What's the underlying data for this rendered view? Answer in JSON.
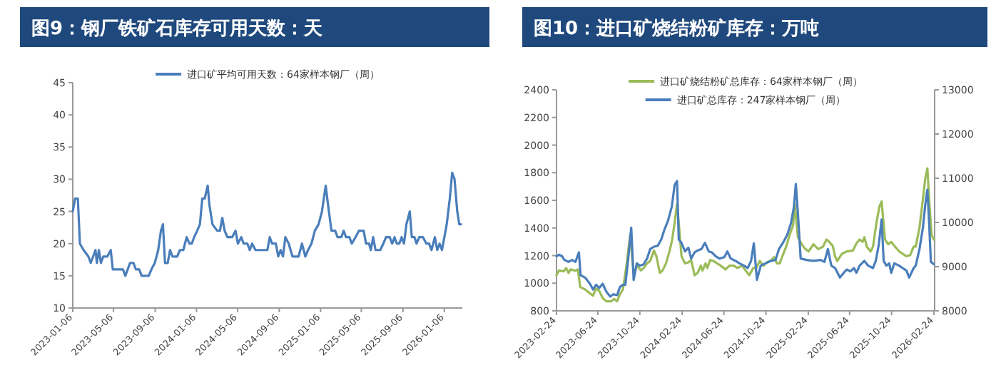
{
  "chart_data": [
    {
      "type": "line",
      "title": "图9：钢厂铁矿石库存可用天数：天",
      "legend": "top",
      "xlim": [
        "2023-01-06",
        "2026-02-28"
      ],
      "xticks": [
        "2023-01-06",
        "2023-05-06",
        "2023-09-06",
        "2024-01-06",
        "2024-05-06",
        "2024-09-06",
        "2025-01-06",
        "2025-05-06",
        "2025-09-06",
        "2026-01-06"
      ],
      "ylim": [
        10,
        45
      ],
      "yticks": [
        10,
        15,
        20,
        25,
        30,
        35,
        40,
        45
      ],
      "x": [
        "2023-01-06",
        "2023-01-13",
        "2023-01-21",
        "2023-01-27",
        "2023-02-07",
        "2023-02-21",
        "2023-02-28",
        "2023-03-14",
        "2023-03-18",
        "2023-03-24",
        "2023-03-30",
        "2023-04-06",
        "2023-04-18",
        "2023-04-28",
        "2023-05-04",
        "2023-06-03",
        "2023-06-10",
        "2023-06-24",
        "2023-07-04",
        "2023-07-11",
        "2023-07-21",
        "2023-07-28",
        "2023-08-18",
        "2023-08-26",
        "2023-09-05",
        "2023-09-15",
        "2023-09-23",
        "2023-09-29",
        "2023-10-05",
        "2023-10-13",
        "2023-10-20",
        "2023-10-27",
        "2023-11-10",
        "2023-11-18",
        "2023-11-28",
        "2023-12-08",
        "2023-12-16",
        "2023-12-23",
        "2023-12-30",
        "2024-01-08",
        "2024-01-16",
        "2024-01-23",
        "2024-01-30",
        "2024-02-08",
        "2024-02-13",
        "2024-02-22",
        "2024-03-07",
        "2024-03-15",
        "2024-03-22",
        "2024-03-29",
        "2024-04-06",
        "2024-04-20",
        "2024-04-30",
        "2024-05-07",
        "2024-05-17",
        "2024-05-24",
        "2024-06-04",
        "2024-06-11",
        "2024-06-18",
        "2024-06-28",
        "2024-08-02",
        "2024-08-09",
        "2024-08-16",
        "2024-08-27",
        "2024-09-03",
        "2024-09-10",
        "2024-09-17",
        "2024-09-24",
        "2024-10-04",
        "2024-10-15",
        "2024-11-02",
        "2024-11-12",
        "2024-11-22",
        "2024-11-30",
        "2024-12-10",
        "2024-12-20",
        "2024-12-31",
        "2025-01-10",
        "2025-01-21",
        "2025-01-28",
        "2025-02-07",
        "2025-02-18",
        "2025-02-25",
        "2025-03-08",
        "2025-03-15",
        "2025-03-22",
        "2025-04-01",
        "2025-04-08",
        "2025-04-19",
        "2025-04-29",
        "2025-05-13",
        "2025-05-20",
        "2025-05-29",
        "2025-06-03",
        "2025-06-10",
        "2025-06-17",
        "2025-07-01",
        "2025-07-10",
        "2025-07-18",
        "2025-07-29",
        "2025-08-05",
        "2025-08-12",
        "2025-08-19",
        "2025-08-26",
        "2025-09-02",
        "2025-09-09",
        "2025-09-16",
        "2025-09-26",
        "2025-10-02",
        "2025-10-10",
        "2025-10-16",
        "2025-10-24",
        "2025-11-04",
        "2025-11-14",
        "2025-11-22",
        "2025-11-29",
        "2025-12-09",
        "2025-12-16",
        "2025-12-23",
        "2025-12-30",
        "2026-01-06",
        "2026-01-13",
        "2026-01-22",
        "2026-01-29",
        "2026-02-05",
        "2026-02-13",
        "2026-02-19",
        "2026-02-24"
      ],
      "series": [
        {
          "name": "进口矿平均可用天数：64家样本钢厂（周）",
          "color": "#4a7ebb",
          "values": [
            25,
            27,
            27,
            20,
            19,
            18,
            17,
            19,
            17,
            19,
            17,
            18,
            18,
            19,
            16,
            16,
            15,
            17,
            17,
            16,
            16,
            15,
            15,
            16,
            17,
            19,
            22,
            23,
            17,
            17,
            19,
            18,
            18,
            19,
            19,
            21,
            20,
            20,
            21,
            22,
            23,
            27,
            27,
            29,
            26,
            23,
            22,
            22,
            24,
            22,
            21,
            21,
            22,
            20,
            21,
            20,
            20,
            19,
            20,
            19,
            19,
            21,
            20,
            20,
            18,
            19,
            18,
            21,
            20,
            18,
            18,
            20,
            18,
            19,
            20,
            22,
            23,
            25,
            29,
            26,
            22,
            22,
            21,
            21,
            22,
            21,
            21,
            20,
            21,
            22,
            22,
            20,
            20,
            19,
            21,
            19,
            19,
            20,
            21,
            21,
            20,
            21,
            20,
            20,
            21,
            20,
            23,
            25,
            21,
            21,
            20,
            21,
            21,
            20,
            20,
            19,
            21,
            19,
            20,
            19,
            21,
            23,
            27,
            31,
            30,
            25,
            23,
            23
          ]
        }
      ]
    },
    {
      "type": "line",
      "title": "图10：进口矿烧结粉矿库存：万吨",
      "legend": "top",
      "xlim": [
        "2023-02-24",
        "2026-02-26"
      ],
      "xticks": [
        "2023-02-24",
        "2023-06-24",
        "2023-10-24",
        "2024-02-24",
        "2024-06-24",
        "2024-10-24",
        "2025-02-24",
        "2025-06-24",
        "2025-10-24",
        "2026-02-24"
      ],
      "ylim": [
        800,
        2400
      ],
      "yticks": [
        800,
        1000,
        1200,
        1400,
        1600,
        1800,
        2000,
        2200,
        2400
      ],
      "y2lim": [
        8000,
        13000
      ],
      "y2ticks": [
        8000,
        9000,
        10000,
        11000,
        12000,
        13000
      ],
      "series": [
        {
          "name": "进口矿烧结粉矿总库存：64家样本钢厂（周）",
          "color": "#9bbb59",
          "x": [
            "2023-02-24",
            "2023-03-03",
            "2023-03-17",
            "2023-03-24",
            "2023-03-31",
            "2023-04-06",
            "2023-04-20",
            "2023-04-27",
            "2023-05-04",
            "2023-05-18",
            "2023-06-01",
            "2023-06-10",
            "2023-06-19",
            "2023-06-28",
            "2023-07-08",
            "2023-07-19",
            "2023-08-02",
            "2023-08-10",
            "2023-08-19",
            "2023-08-27",
            "2023-09-05",
            "2023-09-15",
            "2023-09-26",
            "2023-10-05",
            "2023-10-10",
            "2023-10-17",
            "2023-10-27",
            "2023-11-04",
            "2023-11-14",
            "2023-11-23",
            "2023-12-04",
            "2023-12-11",
            "2023-12-21",
            "2023-12-29",
            "2024-01-08",
            "2024-01-18",
            "2024-01-26",
            "2024-02-02",
            "2024-02-09",
            "2024-02-14",
            "2024-02-22",
            "2024-03-03",
            "2024-03-13",
            "2024-03-21",
            "2024-03-31",
            "2024-04-09",
            "2024-04-18",
            "2024-04-23",
            "2024-05-02",
            "2024-05-07",
            "2024-05-15",
            "2024-05-25",
            "2024-06-04",
            "2024-06-15",
            "2024-06-29",
            "2024-07-10",
            "2024-07-23",
            "2024-08-02",
            "2024-08-16",
            "2024-08-26",
            "2024-09-06",
            "2024-09-17",
            "2024-09-26",
            "2024-10-06",
            "2024-10-17",
            "2024-10-28",
            "2024-11-07",
            "2024-11-17",
            "2024-11-25",
            "2024-12-03",
            "2024-12-11",
            "2024-12-22",
            "2025-01-01",
            "2025-01-11",
            "2025-01-16",
            "2025-01-25",
            "2025-02-05",
            "2025-02-16",
            "2025-02-25",
            "2025-03-11",
            "2025-03-25",
            "2025-04-08",
            "2025-04-18",
            "2025-04-26",
            "2025-05-06",
            "2025-05-13",
            "2025-05-19",
            "2025-06-02",
            "2025-06-16",
            "2025-07-04",
            "2025-07-14",
            "2025-07-23",
            "2025-08-01",
            "2025-08-06",
            "2025-08-13",
            "2025-08-24",
            "2025-08-31",
            "2025-09-10",
            "2025-09-19",
            "2025-09-25",
            "2025-10-05",
            "2025-10-14",
            "2025-10-23",
            "2025-11-01",
            "2025-11-15",
            "2025-11-25",
            "2025-12-06",
            "2025-12-17",
            "2025-12-27",
            "2026-01-02",
            "2026-01-13",
            "2026-01-23",
            "2026-01-30",
            "2026-02-05",
            "2026-02-10",
            "2026-02-17",
            "2026-02-24"
          ],
          "values": [
            1058,
            1092,
            1086,
            1110,
            1075,
            1100,
            1090,
            1100,
            972,
            955,
            927,
            910,
            962,
            945,
            893,
            869,
            869,
            886,
            869,
            920,
            955,
            1127,
            1350,
            1100,
            1092,
            1127,
            1092,
            1110,
            1144,
            1161,
            1237,
            1196,
            1075,
            1092,
            1144,
            1230,
            1316,
            1437,
            1574,
            1437,
            1196,
            1144,
            1151,
            1168,
            1058,
            1075,
            1127,
            1092,
            1144,
            1110,
            1168,
            1161,
            1144,
            1127,
            1100,
            1127,
            1127,
            1110,
            1127,
            1092,
            1058,
            1110,
            1110,
            1161,
            1127,
            1154,
            1161,
            1189,
            1144,
            1144,
            1196,
            1265,
            1350,
            1420,
            1574,
            1333,
            1282,
            1247,
            1230,
            1282,
            1247,
            1265,
            1316,
            1299,
            1271,
            1196,
            1161,
            1213,
            1230,
            1237,
            1289,
            1316,
            1299,
            1333,
            1265,
            1230,
            1265,
            1437,
            1557,
            1592,
            1316,
            1282,
            1299,
            1271,
            1230,
            1213,
            1196,
            1203,
            1265,
            1265,
            1402,
            1609,
            1763,
            1832,
            1609,
            1350,
            1316
          ]
        },
        {
          "name": "进口矿总库存：247家样本钢厂（周）",
          "color": "#4a7ebb",
          "axis": "y2",
          "x": [
            "2023-02-24",
            "2023-03-03",
            "2023-03-12",
            "2023-03-19",
            "2023-03-31",
            "2023-04-10",
            "2023-04-20",
            "2023-04-30",
            "2023-05-05",
            "2023-05-18",
            "2023-06-01",
            "2023-06-10",
            "2023-06-19",
            "2023-06-28",
            "2023-07-08",
            "2023-07-19",
            "2023-07-30",
            "2023-08-08",
            "2023-08-19",
            "2023-08-27",
            "2023-09-05",
            "2023-09-12",
            "2023-09-21",
            "2023-09-29",
            "2023-10-06",
            "2023-10-15",
            "2023-10-24",
            "2023-11-04",
            "2023-11-14",
            "2023-11-23",
            "2023-12-04",
            "2023-12-15",
            "2023-12-25",
            "2024-01-03",
            "2024-01-14",
            "2024-01-25",
            "2024-02-02",
            "2024-02-09",
            "2024-02-14",
            "2024-02-22",
            "2024-03-03",
            "2024-03-13",
            "2024-03-21",
            "2024-03-31",
            "2024-04-09",
            "2024-04-20",
            "2024-04-30",
            "2024-05-11",
            "2024-05-20",
            "2024-05-31",
            "2024-06-11",
            "2024-06-25",
            "2024-07-04",
            "2024-07-14",
            "2024-07-28",
            "2024-08-08",
            "2024-08-22",
            "2024-09-01",
            "2024-09-11",
            "2024-09-19",
            "2024-09-28",
            "2024-10-09",
            "2024-10-23",
            "2024-11-07",
            "2024-11-21",
            "2024-12-01",
            "2024-12-14",
            "2024-12-25",
            "2025-01-05",
            "2025-01-13",
            "2025-01-19",
            "2025-01-25",
            "2025-02-02",
            "2025-02-19",
            "2025-03-11",
            "2025-04-01",
            "2025-04-12",
            "2025-04-22",
            "2025-05-02",
            "2025-05-13",
            "2025-05-27",
            "2025-06-07",
            "2025-06-16",
            "2025-06-26",
            "2025-07-07",
            "2025-07-14",
            "2025-07-23",
            "2025-08-06",
            "2025-08-17",
            "2025-08-31",
            "2025-09-08",
            "2025-09-17",
            "2025-09-25",
            "2025-10-01",
            "2025-10-09",
            "2025-10-17",
            "2025-10-23",
            "2025-11-01",
            "2025-11-15",
            "2025-11-25",
            "2025-12-06",
            "2025-12-14",
            "2025-12-27",
            "2026-01-02",
            "2026-01-13",
            "2026-01-23",
            "2026-01-30",
            "2026-02-05",
            "2026-02-10",
            "2026-02-15",
            "2026-02-24"
          ],
          "values": [
            9237,
            9269,
            9237,
            9151,
            9108,
            9151,
            9108,
            9323,
            8806,
            8753,
            8613,
            8484,
            8591,
            8516,
            8613,
            8430,
            8323,
            8376,
            8355,
            8538,
            8591,
            8591,
            9237,
            9882,
            8699,
            9075,
            9022,
            9054,
            9183,
            9398,
            9452,
            9473,
            9613,
            9828,
            10043,
            10366,
            10849,
            10935,
            9613,
            9538,
            9344,
            9430,
            9183,
            9323,
            9366,
            9398,
            9538,
            9344,
            9323,
            9237,
            9183,
            9215,
            9344,
            9183,
            9130,
            9075,
            9022,
            8968,
            9130,
            9527,
            8699,
            9022,
            9075,
            9130,
            9151,
            9398,
            9559,
            9720,
            9989,
            10333,
            10871,
            10204,
            9183,
            9151,
            9130,
            9151,
            9108,
            9398,
            9022,
            8968,
            8753,
            8860,
            8935,
            8892,
            8968,
            8860,
            9022,
            9130,
            9022,
            8968,
            9130,
            9505,
            10065,
            9130,
            9022,
            9075,
            8860,
            9075,
            9022,
            8968,
            8914,
            8753,
            8968,
            9022,
            9398,
            9882,
            10419,
            10742,
            9989,
            9108,
            9054
          ]
        }
      ]
    }
  ]
}
